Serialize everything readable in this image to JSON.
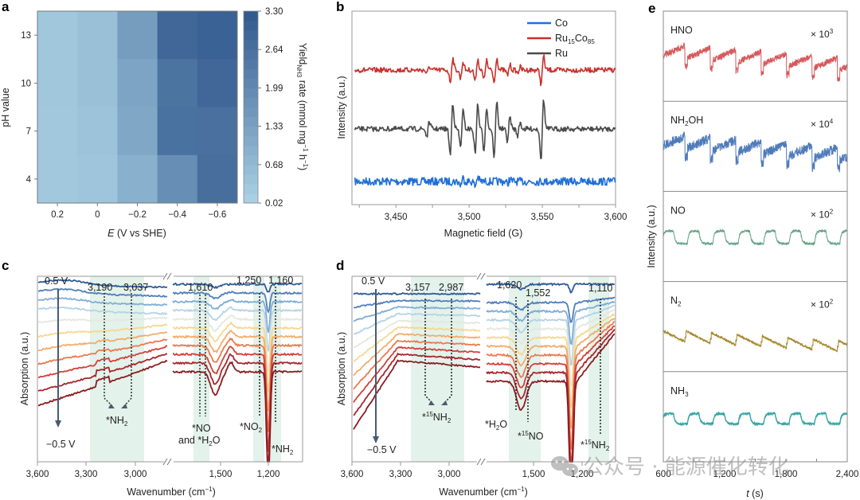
{
  "figure": {
    "panel_letters": [
      "a",
      "b",
      "c",
      "d",
      "e"
    ],
    "watermark": "公众号 · 能源催化转化"
  },
  "chart_data": [
    {
      "panel": "a",
      "type": "heatmap",
      "xlabel_italic": "E",
      "xlabel_rest": " (V vs SHE)",
      "ylabel": "pH value",
      "x_categories": [
        "0.2",
        "0",
        "−0.2",
        "−0.4",
        "−0.6"
      ],
      "y_categories": [
        "4",
        "7",
        "10",
        "13"
      ],
      "values_by_row": {
        "13": [
          0.25,
          0.45,
          1.45,
          2.95,
          3.1
        ],
        "10": [
          0.25,
          0.45,
          1.25,
          2.6,
          2.95
        ],
        "7": [
          0.22,
          0.35,
          1.15,
          2.65,
          2.7
        ],
        "4": [
          0.22,
          0.3,
          0.9,
          1.85,
          2.75
        ]
      },
      "colorbar": {
        "label_main": "Yield",
        "label_sub": "NH3",
        "label_rest": " rate (mmol mg",
        "label_sup1": "−1",
        "label_mid": " h",
        "label_sup2": "−1",
        "label_end": ")",
        "ticks": [
          "3.30",
          "2.64",
          "1.99",
          "1.33",
          "0.68",
          "0.02"
        ],
        "range": [
          0.02,
          3.3
        ],
        "color_low": "#a9cfe3",
        "color_high": "#335b8f"
      }
    },
    {
      "panel": "b",
      "type": "line",
      "xlabel": "Magnetic field (G)",
      "ylabel": "Intensity (a.u.)",
      "xlim": [
        3420,
        3600
      ],
      "x_ticks": [
        "3,450",
        "3,500",
        "3,550",
        "3,600"
      ],
      "x_tick_values": [
        3450,
        3500,
        3550,
        3600
      ],
      "legend_position": "top-right",
      "series": [
        {
          "name": "Co",
          "color": "#1e6fd9",
          "offset": 0.0,
          "peaks": [
            3495,
            3505,
            3527
          ],
          "amplitude": 0.3
        },
        {
          "name": "Ru15Co85",
          "label_main": "Ru",
          "label_sub1": "15",
          "label_mid": "Co",
          "label_sub2": "85",
          "color": "#c8312b",
          "offset": 2.0,
          "peaks": [
            3472,
            3488,
            3495,
            3505,
            3511,
            3518,
            3527,
            3534,
            3550
          ],
          "amplitude": 0.6
        },
        {
          "name": "Ru",
          "color": "#4a4a4a",
          "offset": 1.0,
          "peaks": [
            3472,
            3488,
            3495,
            3505,
            3511,
            3518,
            3527,
            3534,
            3550
          ],
          "amplitude": 1.0
        }
      ]
    },
    {
      "panel": "c",
      "type": "line",
      "xlabel": "Wavenumber (cm",
      "xlabel_sup": "−1",
      "xlabel_end": ")",
      "ylabel": "Absorption (a.u.)",
      "x_ticks": [
        "3,600",
        "3,300",
        "3,000",
        "1,500",
        "1,200"
      ],
      "potential_top": "0.5 V",
      "potential_bottom": "−0.5 V",
      "n_curves": 10,
      "curve_colors": [
        "#2f5b96",
        "#4f7fba",
        "#7faed6",
        "#b5d3e6",
        "#e4e8df",
        "#f6d890",
        "#f4ac6a",
        "#ea7a4e",
        "#d2403a",
        "#a8262c",
        "#8a1c20"
      ],
      "peak_labels": {
        "p3190": "3,190",
        "p3037": "3,037",
        "p1610": "1,610",
        "p1250": "1,250",
        "p1160": "1,160"
      },
      "species": {
        "nh2_main": "*NH",
        "nh2_sub": "2",
        "no_line1": "*NO",
        "no_line2_pre": "and *H",
        "no_line2_sub": "2",
        "no_line2_post": "O",
        "no2_main": "*NO",
        "no2_sub": "2",
        "nh2b_main": "*NH",
        "nh2b_sub": "2"
      }
    },
    {
      "panel": "d",
      "type": "line",
      "xlabel": "Wavenumber (cm",
      "xlabel_sup": "−1",
      "xlabel_end": ")",
      "ylabel": "Absorption (a.u.)",
      "x_ticks": [
        "3,600",
        "3,300",
        "3,000",
        "1,500",
        "1,200"
      ],
      "potential_top": "0.5 V",
      "potential_bottom": "−0.5 V",
      "n_curves": 10,
      "peak_labels": {
        "p3157": "3,157",
        "p2987": "2,987",
        "p1620": "1,620",
        "p1552": "1,552",
        "p1110": "1,110"
      },
      "species": {
        "n15h2_pre": "*",
        "n15h2_sup": "15",
        "n15h2_main": "NH",
        "n15h2_sub": "2",
        "h2o_pre": "*H",
        "h2o_sub": "2",
        "h2o_post": "O",
        "n15o_pre": "*",
        "n15o_sup": "15",
        "n15o_main": "NO",
        "n15h2b_pre": "*",
        "n15h2b_sup": "15",
        "n15h2b_main": "NH",
        "n15h2b_sub": "2"
      }
    },
    {
      "panel": "e",
      "type": "line",
      "xlabel_italic": "t",
      "xlabel_rest": " (s)",
      "ylabel": "Intensity (a.u.)",
      "xlim": [
        600,
        2400
      ],
      "x_ticks": [
        "600",
        "1,200",
        "1,800",
        "2,400"
      ],
      "x_tick_values": [
        600,
        1200,
        1800,
        2400
      ],
      "cycles": 7,
      "series": [
        {
          "name": "HNO",
          "label_main": "HNO",
          "label_sub": "",
          "scale_pre": "× 10",
          "scale_exp": "3",
          "color": "#d0474a",
          "shape": "sawtooth-down"
        },
        {
          "name": "NH2OH",
          "label_main": "NH",
          "label_sub": "2",
          "label_post": "OH",
          "scale_pre": "× 10",
          "scale_exp": "4",
          "color": "#3b6db3",
          "shape": "sawtooth-down"
        },
        {
          "name": "NO",
          "label_main": "NO",
          "label_sub": "",
          "scale_pre": "× 10",
          "scale_exp": "2",
          "color": "#4f9878",
          "shape": "pulse"
        },
        {
          "name": "N2",
          "label_main": "N",
          "label_sub": "2",
          "scale_pre": "× 10",
          "scale_exp": "2",
          "color": "#9b7a14",
          "shape": "sawtooth-inv"
        },
        {
          "name": "NH3",
          "label_main": "NH",
          "label_sub": "3",
          "scale_pre": "",
          "scale_exp": "",
          "color": "#1f9a9a",
          "shape": "pulse"
        }
      ]
    }
  ]
}
